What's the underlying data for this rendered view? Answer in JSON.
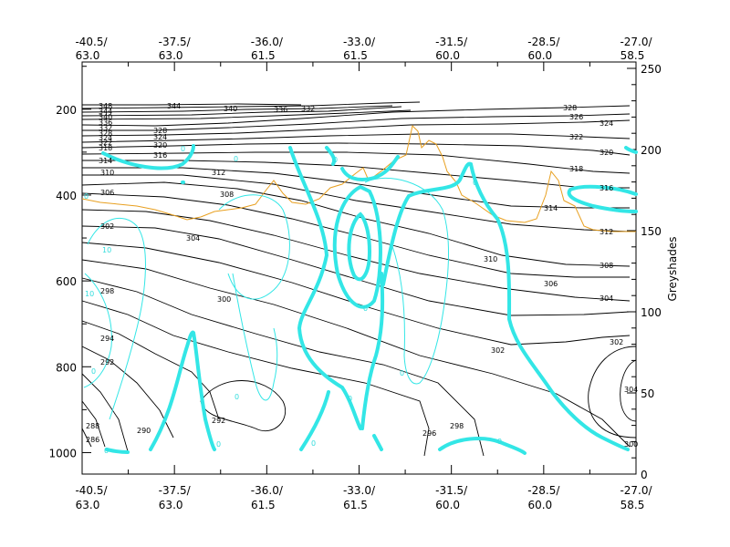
{
  "chart_data": {
    "type": "line",
    "title": "",
    "x_ticks": [
      {
        "lon": "-40.5/",
        "lat": "63.0"
      },
      {
        "lon": "-37.5/",
        "lat": "63.0"
      },
      {
        "lon": "-36.0/",
        "lat": "61.5"
      },
      {
        "lon": "-33.0/",
        "lat": "61.5"
      },
      {
        "lon": "-31.5/",
        "lat": "60.0"
      },
      {
        "lon": "-28.5/",
        "lat": "60.0"
      },
      {
        "lon": "-27.0/",
        "lat": "58.5"
      }
    ],
    "y_left": {
      "ticks": [
        "200",
        "400",
        "600",
        "800",
        "1000"
      ],
      "ylim": [
        1050,
        90
      ]
    },
    "y_right": {
      "label": "Greyshades",
      "ticks": [
        "0",
        "50",
        "100",
        "150",
        "200",
        "250"
      ],
      "ylim": [
        0,
        250
      ]
    },
    "theta_labels": [
      "348",
      "344",
      "340",
      "336",
      "332",
      "328",
      "326",
      "324",
      "322",
      "320",
      "318",
      "316",
      "314",
      "312",
      "310",
      "308",
      "306",
      "304",
      "302",
      "300",
      "298",
      "296",
      "294",
      "292",
      "290",
      "288",
      "286"
    ],
    "cyan_labels": [
      "0",
      "10"
    ],
    "colors": {
      "theta": "#000000",
      "tropopause": "#e8a020",
      "cyan": "#33e6e6"
    }
  }
}
